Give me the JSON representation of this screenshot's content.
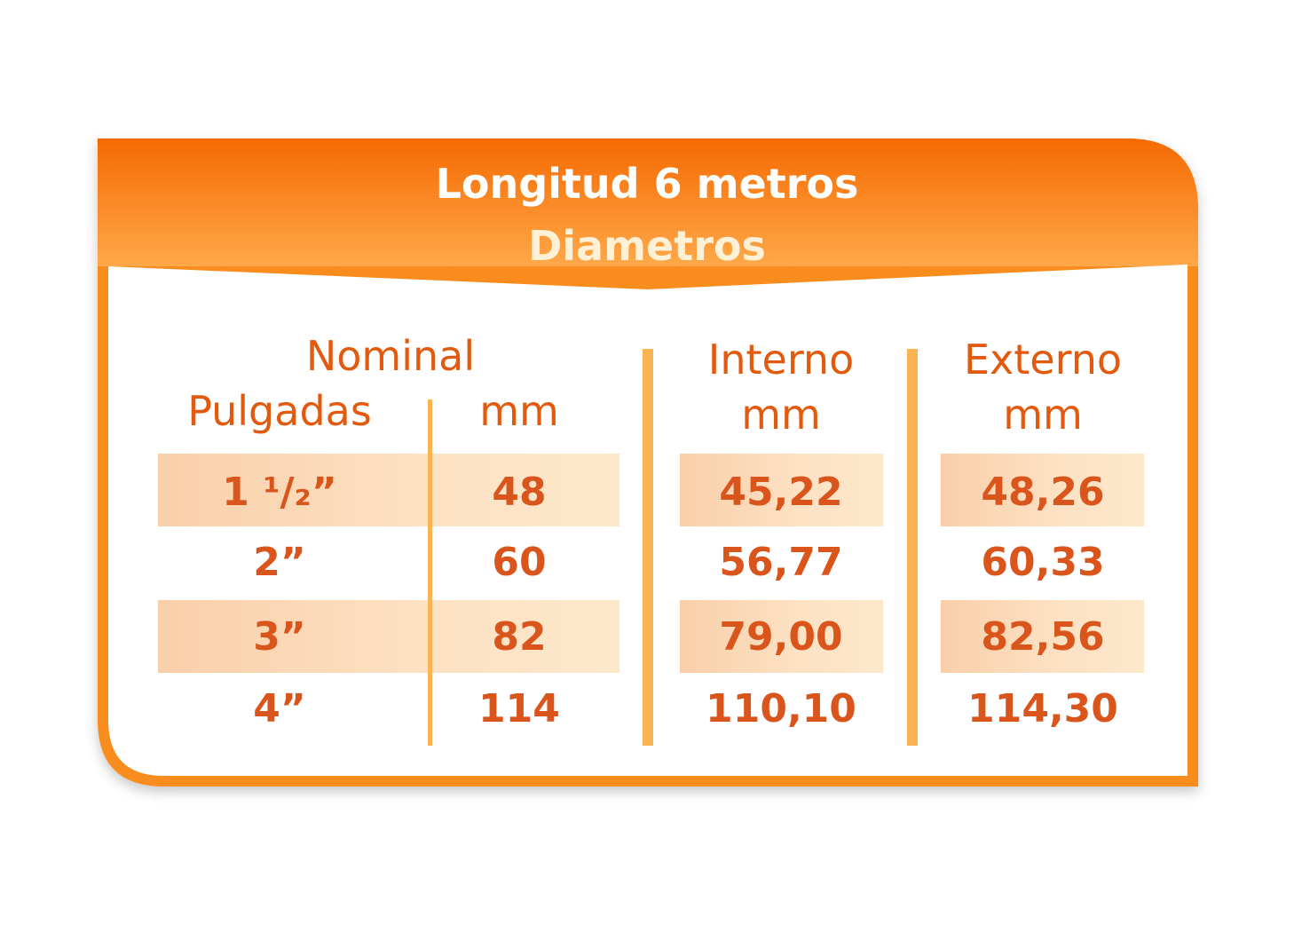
{
  "header": {
    "title": "Longitud 6 metros",
    "subtitle": "Diametros"
  },
  "columns": {
    "nominal": "Nominal",
    "pulgadas": "Pulgadas",
    "nominal_mm": "mm",
    "interno": "Interno",
    "interno_mm": "mm",
    "externo": "Externo",
    "externo_mm": "mm"
  },
  "rows": [
    {
      "pulgadas": "1 ¹/₂”",
      "mm": "48",
      "interno": "45,22",
      "externo": "48,26",
      "highlight": true
    },
    {
      "pulgadas": "2”",
      "mm": "60",
      "interno": "56,77",
      "externo": "60,33",
      "highlight": false
    },
    {
      "pulgadas": "3”",
      "mm": "82",
      "interno": "79,00",
      "externo": "82,56",
      "highlight": true
    },
    {
      "pulgadas": "4”",
      "mm": "114",
      "interno": "110,10",
      "externo": "114,30",
      "highlight": false
    }
  ],
  "colors": {
    "accent": "#f57f0e",
    "header_gradient_top": "#f56d04",
    "header_gradient_bottom": "#ffa344",
    "text": "#d9551c",
    "divider": "#fbb454",
    "band": "#fbd7b4"
  }
}
